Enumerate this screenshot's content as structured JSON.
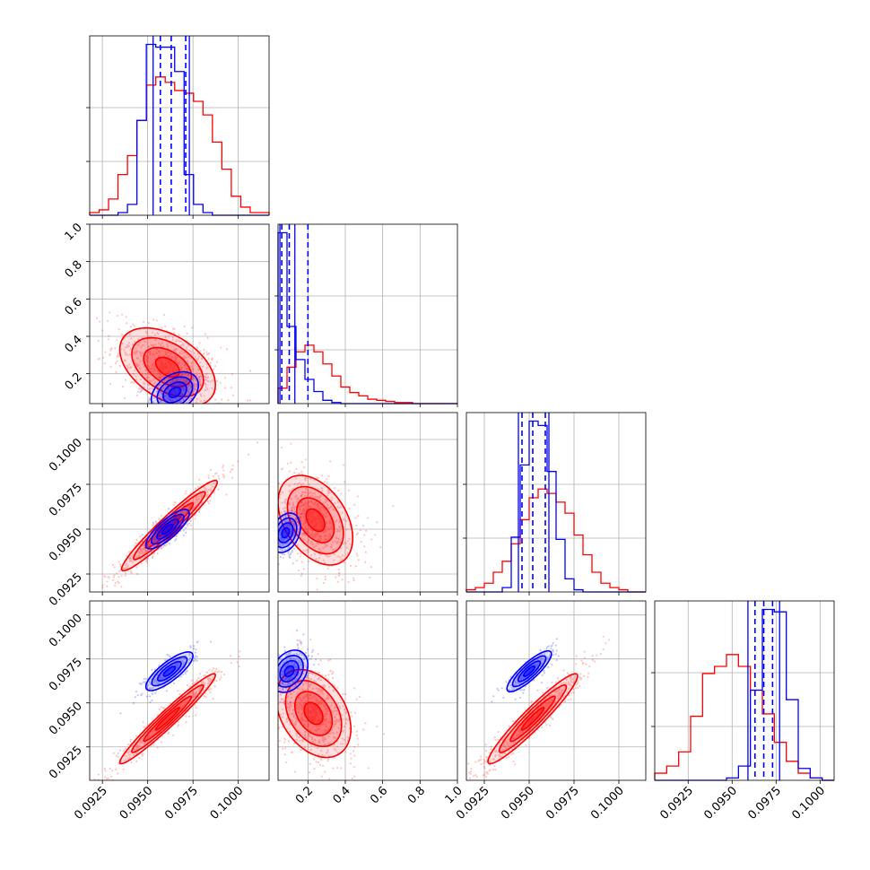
{
  "chart_data": {
    "type": "corner",
    "grid": true,
    "colors": {
      "dataset_a": "#ff0000",
      "dataset_b": "#0000ff"
    },
    "quantile_lines": "blue dashed vertical lines on diagonal histograms",
    "parameters": [
      {
        "range": [
          0.0918,
          0.1017
        ],
        "ticks": [
          0.0925,
          0.095,
          0.0975,
          0.1
        ],
        "tick_labels": [
          "0.0925",
          "0.0950",
          "0.0975",
          "0.1000"
        ],
        "blue_quantiles": [
          0.0957,
          0.0963,
          0.0971
        ],
        "blue_outer_lines": [
          0.0953,
          0.0973
        ]
      },
      {
        "range": [
          0.04,
          1.0
        ],
        "ticks": [
          0.2,
          0.4,
          0.6,
          0.8,
          1.0
        ],
        "tick_labels": [
          "0.2",
          "0.4",
          "0.6",
          "0.8",
          "1.0"
        ],
        "blue_quantiles": [
          0.06,
          0.1,
          0.2
        ],
        "blue_outer_lines": [
          0.05,
          0.13
        ]
      },
      {
        "range": [
          0.0915,
          0.1015
        ],
        "ticks": [
          0.0925,
          0.095,
          0.0975,
          0.1
        ],
        "tick_labels": [
          "0.0925",
          "0.0950",
          "0.0975",
          "0.1000"
        ],
        "blue_quantiles": [
          0.0946,
          0.0952,
          0.0959
        ],
        "blue_outer_lines": [
          0.0944,
          0.0961
        ]
      },
      {
        "range": [
          0.0906,
          0.1008
        ],
        "ticks": [
          0.0925,
          0.095,
          0.0975,
          0.1
        ],
        "tick_labels": [
          "0.0925",
          "0.0950",
          "0.0975",
          "0.1000"
        ],
        "blue_quantiles": [
          0.0963,
          0.0968,
          0.0973
        ],
        "blue_outer_lines": [
          0.0959,
          0.0977
        ]
      }
    ],
    "histograms": [
      {
        "red": [
          1,
          2,
          6,
          15,
          22,
          35,
          48,
          51,
          49,
          46,
          45,
          42,
          37,
          27,
          17,
          7,
          3,
          1,
          1
        ],
        "blue": [
          0,
          0,
          0,
          1,
          4,
          35,
          63,
          62,
          62,
          53,
          15,
          4,
          1,
          0,
          0,
          0,
          0,
          0,
          0
        ]
      },
      {
        "red": [
          14,
          33,
          47,
          53,
          47,
          36,
          25,
          15,
          10,
          7,
          4,
          3,
          2,
          1,
          1,
          0,
          0,
          0,
          0,
          0
        ],
        "blue": [
          155,
          70,
          40,
          22,
          11,
          3,
          1,
          0,
          0,
          0,
          0,
          0,
          0,
          0,
          0,
          0,
          0,
          0,
          0,
          0
        ]
      },
      {
        "red": [
          1,
          2,
          4,
          9,
          14,
          22,
          33,
          43,
          47,
          45,
          41,
          36,
          26,
          17,
          9,
          4,
          2,
          1,
          0,
          0
        ],
        "blue": [
          0,
          0,
          0,
          0,
          2,
          25,
          58,
          78,
          76,
          55,
          24,
          6,
          1,
          0,
          0,
          0,
          0,
          0,
          0,
          0
        ]
      },
      {
        "red": [
          3,
          6,
          12,
          27,
          45,
          48,
          53,
          48,
          38,
          28,
          16,
          8,
          3,
          1,
          0
        ],
        "blue": [
          0,
          0,
          0,
          0,
          0,
          0,
          1,
          6,
          38,
          72,
          71,
          34,
          5,
          1,
          0
        ]
      }
    ],
    "pairs": [
      {
        "row": 1,
        "col": 0,
        "red": {
          "center": [
            0.0961,
            0.235
          ],
          "sd": [
            0.00132,
            0.105
          ],
          "corr": -0.45
        },
        "blue": {
          "center": [
            0.0965,
            0.1
          ],
          "sd": [
            0.00065,
            0.055
          ],
          "corr": 0.35
        }
      },
      {
        "row": 2,
        "col": 0,
        "red": {
          "center": [
            0.0962,
            0.0952
          ],
          "sd": [
            0.00132,
            0.00126
          ],
          "corr": 0.96
        },
        "blue": {
          "center": [
            0.0961,
            0.095
          ],
          "sd": [
            0.0006,
            0.00055
          ],
          "corr": 0.8
        }
      },
      {
        "row": 2,
        "col": 1,
        "red": {
          "center": [
            0.24,
            0.0955
          ],
          "sd": [
            0.1,
            0.00125
          ],
          "corr": -0.4
        },
        "blue": {
          "center": [
            0.08,
            0.0948
          ],
          "sd": [
            0.04,
            0.00055
          ],
          "corr": 0.3
        }
      },
      {
        "row": 3,
        "col": 0,
        "red": {
          "center": [
            0.0961,
            0.0941
          ],
          "sd": [
            0.00132,
            0.00128
          ],
          "corr": 0.97
        },
        "blue": {
          "center": [
            0.0962,
            0.0968
          ],
          "sd": [
            0.00065,
            0.00055
          ],
          "corr": 0.8
        }
      },
      {
        "row": 3,
        "col": 1,
        "red": {
          "center": [
            0.23,
            0.0944
          ],
          "sd": [
            0.1,
            0.00125
          ],
          "corr": -0.35
        },
        "blue": {
          "center": [
            0.1,
            0.0968
          ],
          "sd": [
            0.05,
            0.0006
          ],
          "corr": 0.3
        }
      },
      {
        "row": 3,
        "col": 2,
        "red": {
          "center": [
            0.0952,
            0.0941
          ],
          "sd": [
            0.00125,
            0.00128
          ],
          "corr": 0.95
        },
        "blue": {
          "center": [
            0.095,
            0.0968
          ],
          "sd": [
            0.00062,
            0.00058
          ],
          "corr": 0.85
        }
      }
    ]
  }
}
